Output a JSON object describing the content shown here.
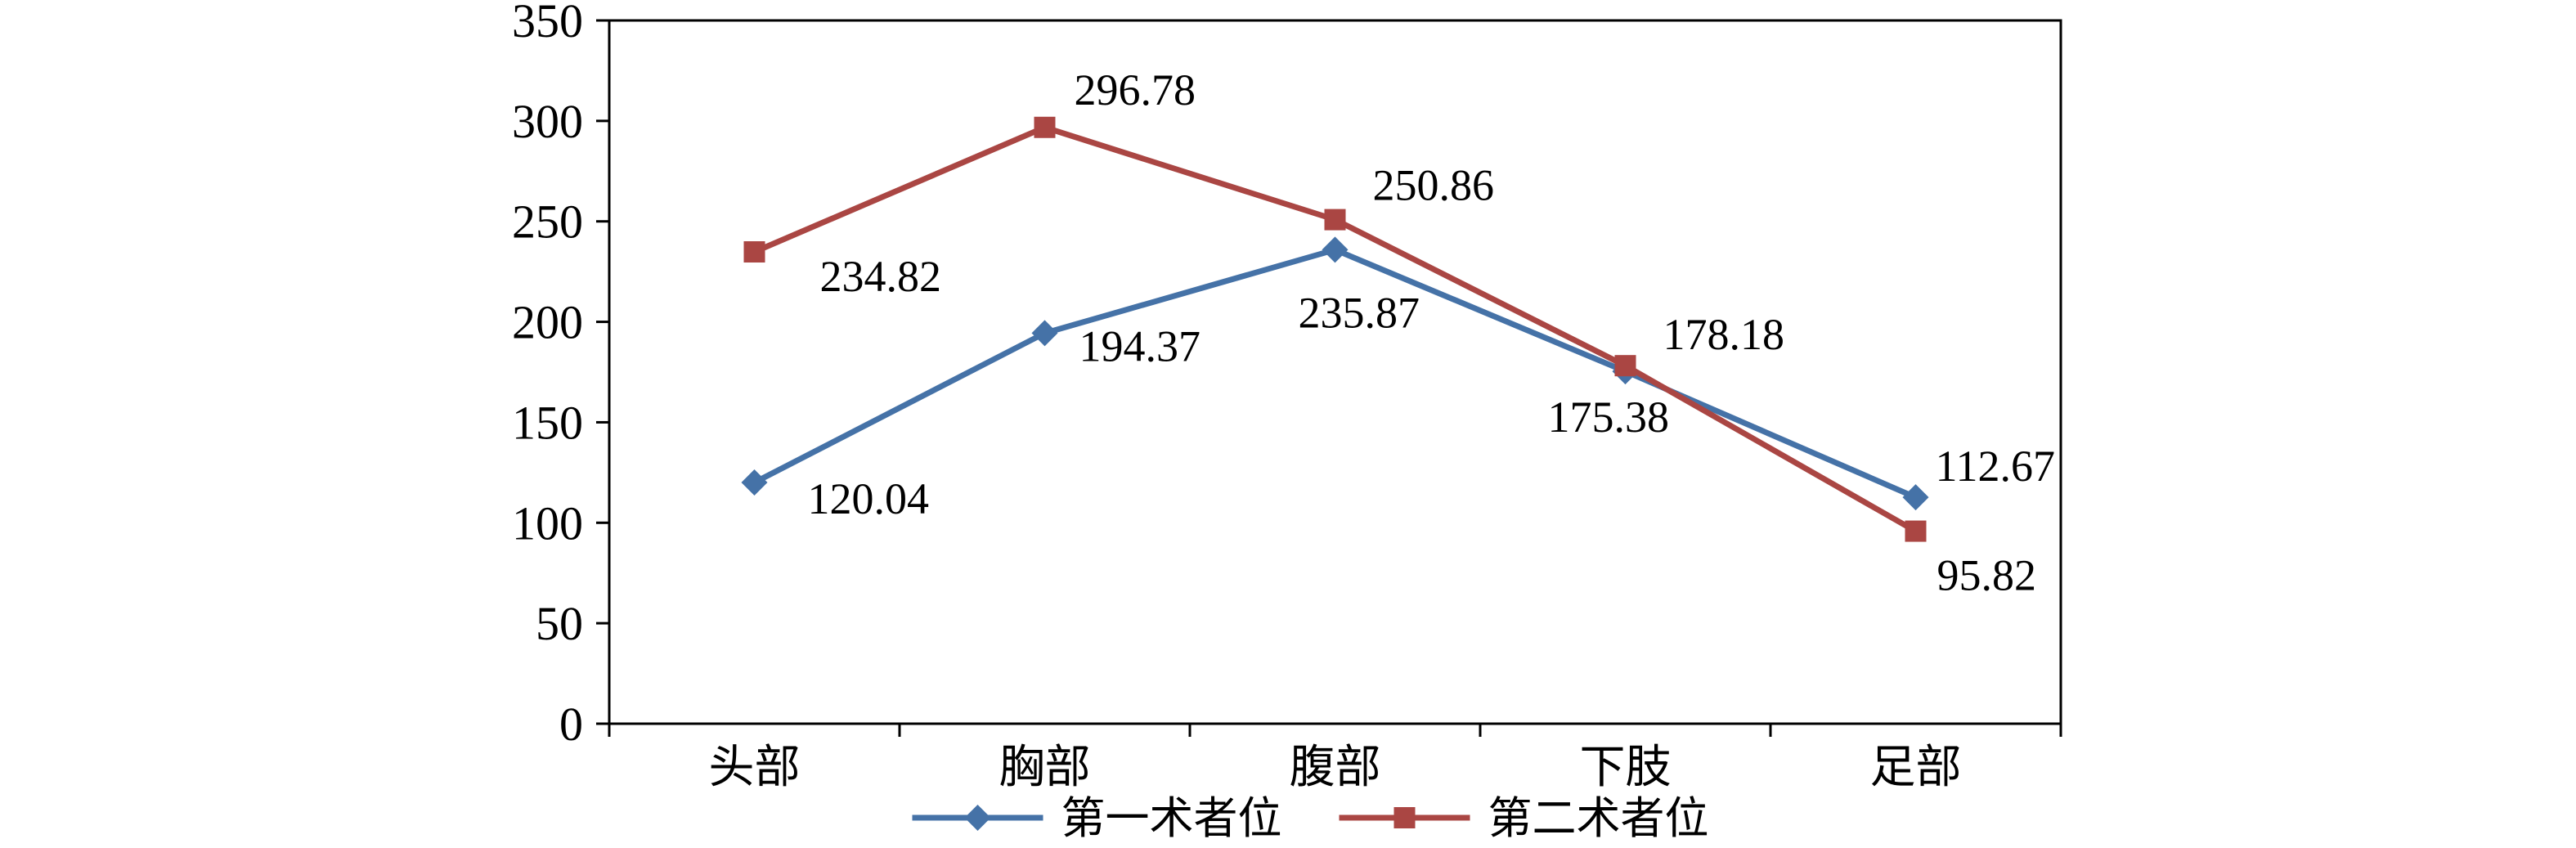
{
  "chart_data": {
    "type": "line",
    "title": "",
    "xlabel": "",
    "ylabel": "",
    "categories": [
      "头部",
      "胸部",
      "腹部",
      "下肢",
      "足部"
    ],
    "series": [
      {
        "name": "第一术者位",
        "color": "#4572A7",
        "marker": "diamond",
        "values": [
          120.04,
          194.37,
          235.87,
          175.38,
          112.67
        ],
        "labels": [
          "120.04",
          "194.37",
          "235.87",
          "175.38",
          "112.67"
        ],
        "label_offsets": [
          {
            "dx": 65,
            "dy": 38
          },
          {
            "dx": 42,
            "dy": 34
          },
          {
            "dx": -45,
            "dy": 95
          },
          {
            "dx": -95,
            "dy": 74
          },
          {
            "dx": 24,
            "dy": -20
          }
        ]
      },
      {
        "name": "第二术者位",
        "color": "#AA4643",
        "marker": "square",
        "values": [
          234.82,
          296.78,
          250.86,
          178.18,
          95.82
        ],
        "labels": [
          "234.82",
          "296.78",
          "250.86",
          "178.18",
          "95.82"
        ],
        "label_offsets": [
          {
            "dx": 80,
            "dy": 48
          },
          {
            "dx": 36,
            "dy": -28
          },
          {
            "dx": 46,
            "dy": -24
          },
          {
            "dx": 46,
            "dy": -20
          },
          {
            "dx": 26,
            "dy": 72
          }
        ]
      }
    ],
    "ylim": [
      0,
      350
    ],
    "ytick_step": 50,
    "ytick_labels": [
      "0",
      "50",
      "100",
      "150",
      "200",
      "250",
      "300",
      "350"
    ],
    "grid": false,
    "legend_position": "bottom-center",
    "background": "#ffffff",
    "axis_color": "#000000"
  }
}
